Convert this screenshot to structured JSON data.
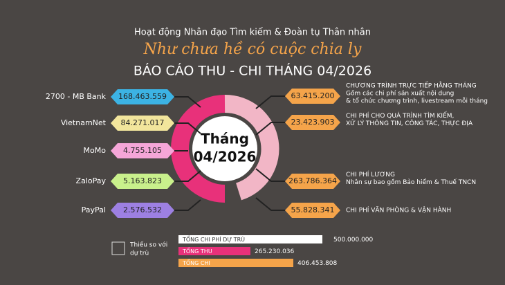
{
  "header": {
    "organization": "Hoạt động Nhân đạo Tìm kiếm & Đoàn tụ Thân nhân",
    "slogan": "Như chưa hề có cuộc chia ly",
    "title": "BÁO CÁO THU - CHI THÁNG 04/2026"
  },
  "center": {
    "line1": "Tháng",
    "line2": "04/2026"
  },
  "income": [
    {
      "label": "2700 - MB Bank",
      "value": "168.463.559",
      "color": "#3cb3e4"
    },
    {
      "label": "VietnamNet",
      "value": "84.271.017",
      "color": "#f2e59c"
    },
    {
      "label": "MoMo",
      "value": "4.755.105",
      "color": "#f5a6d8"
    },
    {
      "label": "ZaloPay",
      "value": "5.163.823",
      "color": "#c9f08c"
    },
    {
      "label": "PayPal",
      "value": "2.576.532",
      "color": "#9d80e2"
    }
  ],
  "expenses": [
    {
      "value": "63.415.200",
      "lines": [
        "CHƯƠNG TRÌNH TRỰC TIẾP HẰNG THÁNG",
        "Gồm các chi phí sản xuất nội dung",
        "& tổ chức chương trình, livestream mỗi tháng"
      ]
    },
    {
      "value": "23.423.903",
      "lines": [
        "CHI PHÍ CHO QUÁ TRÌNH TÌM KIẾM,",
        "XỬ LÝ THÔNG TIN, CÔNG TÁC, THỰC ĐỊA"
      ]
    },
    {
      "value": "263.786.364",
      "lines": [
        "CHI PHÍ LƯƠNG",
        "Nhân sự bao gồm Bảo hiểm & Thuế TNCN"
      ]
    },
    {
      "value": "55.828.341",
      "lines": [
        "CHI PHÍ VĂN PHÒNG & VẬN HÀNH"
      ]
    }
  ],
  "legend": {
    "lines": [
      "Thiếu so với",
      "dự trù"
    ]
  },
  "summary": [
    {
      "label": "TỔNG CHI PHÍ DỰ TRÙ",
      "value": "500.000.000",
      "color": "#ffffff"
    },
    {
      "label": "TỔNG THU",
      "value": "265.230.036",
      "color": "#e8317a"
    },
    {
      "label": "TỔNG CHI",
      "value": "406.453.808",
      "color": "#f5a44a"
    }
  ]
}
